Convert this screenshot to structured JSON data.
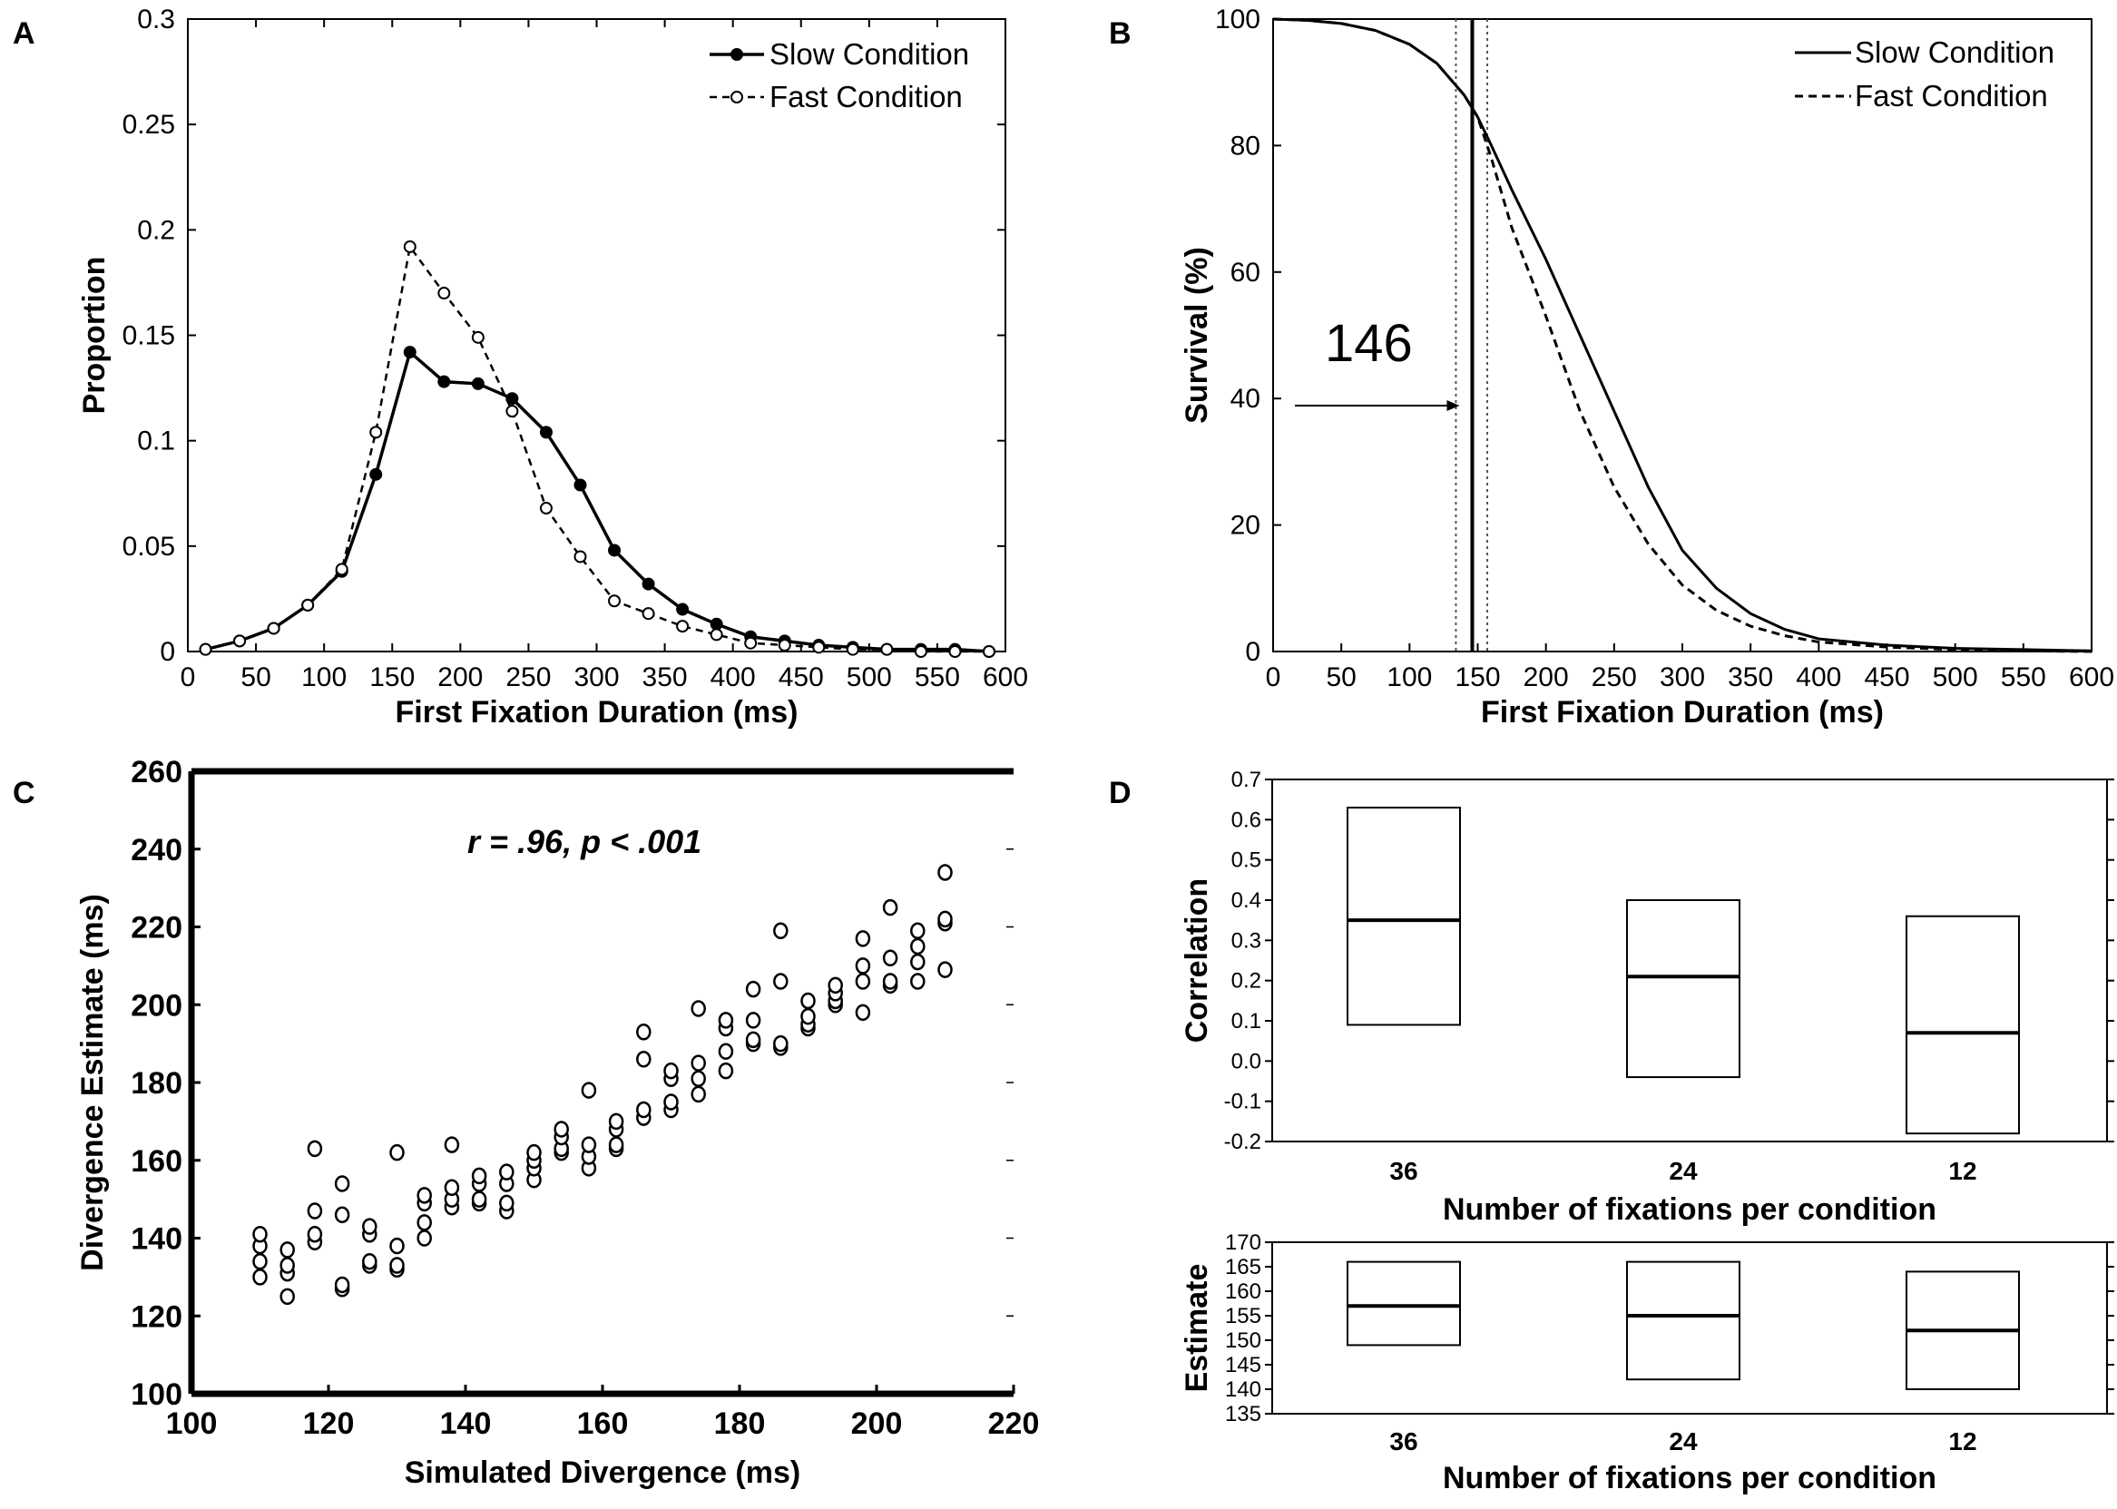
{
  "chart_data": [
    {
      "panel": "A",
      "type": "line",
      "xlabel": "First Fixation Duration (ms)",
      "ylabel": "Proportion",
      "xlim": [
        0,
        600
      ],
      "ylim": [
        0,
        0.3
      ],
      "xticks": [
        "0",
        "50",
        "100",
        "150",
        "200",
        "250",
        "300",
        "350",
        "400",
        "450",
        "500",
        "550",
        "600"
      ],
      "yticks": [
        "0",
        "0.05",
        "0.1",
        "0.15",
        "0.2",
        "0.25",
        "0.3"
      ],
      "legend_position": "top-right",
      "series": [
        {
          "name": "Slow Condition",
          "style": "solid-filled",
          "x": [
            13,
            38,
            63,
            88,
            113,
            138,
            163,
            188,
            213,
            238,
            263,
            288,
            313,
            338,
            363,
            388,
            413,
            438,
            463,
            488,
            513,
            538,
            563,
            588
          ],
          "y": [
            0.001,
            0.005,
            0.011,
            0.022,
            0.038,
            0.084,
            0.142,
            0.128,
            0.127,
            0.12,
            0.104,
            0.079,
            0.048,
            0.032,
            0.02,
            0.013,
            0.007,
            0.005,
            0.003,
            0.002,
            0.001,
            0.001,
            0.001,
            0.0
          ]
        },
        {
          "name": "Fast Condition",
          "style": "dashed-open",
          "x": [
            13,
            38,
            63,
            88,
            113,
            138,
            163,
            188,
            213,
            238,
            263,
            288,
            313,
            338,
            363,
            388,
            413,
            438,
            463,
            488,
            513,
            538,
            563,
            588
          ],
          "y": [
            0.001,
            0.005,
            0.011,
            0.022,
            0.039,
            0.104,
            0.192,
            0.17,
            0.149,
            0.114,
            0.068,
            0.045,
            0.024,
            0.018,
            0.012,
            0.008,
            0.004,
            0.003,
            0.002,
            0.001,
            0.001,
            0.0,
            0.0,
            0.0
          ]
        }
      ]
    },
    {
      "panel": "B",
      "type": "line",
      "xlabel": "First Fixation Duration (ms)",
      "ylabel": "Survival (%)",
      "xlim": [
        0,
        600
      ],
      "ylim": [
        0,
        100
      ],
      "xticks": [
        "0",
        "50",
        "100",
        "150",
        "200",
        "250",
        "300",
        "350",
        "400",
        "450",
        "500",
        "550",
        "600"
      ],
      "yticks": [
        "0",
        "20",
        "40",
        "60",
        "80",
        "100"
      ],
      "legend_position": "top-right",
      "annotation": "146",
      "divergence_point": 146,
      "ci_bounds": [
        134,
        157
      ],
      "series": [
        {
          "name": "Slow Condition",
          "style": "solid",
          "x": [
            0,
            25,
            50,
            75,
            100,
            120,
            140,
            150,
            160,
            175,
            200,
            225,
            250,
            275,
            300,
            325,
            350,
            375,
            400,
            450,
            500,
            550,
            600
          ],
          "y": [
            100,
            99.8,
            99.3,
            98.2,
            96,
            93,
            88,
            84.5,
            80,
            73,
            62,
            50,
            38,
            26,
            16,
            10,
            6,
            3.5,
            2,
            1,
            0.5,
            0.3,
            0.1
          ]
        },
        {
          "name": "Fast Condition",
          "style": "dashed",
          "x": [
            0,
            25,
            50,
            75,
            100,
            120,
            140,
            150,
            160,
            175,
            200,
            225,
            250,
            275,
            300,
            325,
            350,
            375,
            400,
            450,
            500,
            550,
            600
          ],
          "y": [
            100,
            99.8,
            99.3,
            98.2,
            96,
            93,
            88,
            84.5,
            78,
            67,
            53,
            38,
            26,
            17,
            10.5,
            6.5,
            4,
            2.5,
            1.5,
            0.7,
            0.3,
            0.1,
            0.0
          ]
        }
      ]
    },
    {
      "panel": "C",
      "type": "scatter",
      "xlabel": "Simulated Divergence (ms)",
      "ylabel": "Divergence Estimate (ms)",
      "xlim": [
        100,
        220
      ],
      "ylim": [
        100,
        260
      ],
      "xticks": [
        "100",
        "120",
        "140",
        "160",
        "180",
        "200",
        "220"
      ],
      "yticks": [
        "100",
        "120",
        "140",
        "160",
        "180",
        "200",
        "220",
        "240",
        "260"
      ],
      "annotation": "r = .96, p < .001",
      "points": [
        [
          110,
          130
        ],
        [
          110,
          134
        ],
        [
          110,
          138
        ],
        [
          110,
          141
        ],
        [
          114,
          125
        ],
        [
          114,
          131
        ],
        [
          114,
          133
        ],
        [
          114,
          137
        ],
        [
          118,
          139
        ],
        [
          118,
          141
        ],
        [
          118,
          147
        ],
        [
          118,
          163
        ],
        [
          122,
          127
        ],
        [
          122,
          128
        ],
        [
          122,
          146
        ],
        [
          122,
          154
        ],
        [
          126,
          133
        ],
        [
          126,
          134
        ],
        [
          126,
          141
        ],
        [
          126,
          143
        ],
        [
          130,
          132
        ],
        [
          130,
          133
        ],
        [
          130,
          138
        ],
        [
          130,
          162
        ],
        [
          134,
          140
        ],
        [
          134,
          144
        ],
        [
          134,
          149
        ],
        [
          134,
          151
        ],
        [
          138,
          148
        ],
        [
          138,
          150
        ],
        [
          138,
          153
        ],
        [
          138,
          164
        ],
        [
          142,
          149
        ],
        [
          142,
          150
        ],
        [
          142,
          154
        ],
        [
          142,
          156
        ],
        [
          146,
          147
        ],
        [
          146,
          149
        ],
        [
          146,
          154
        ],
        [
          146,
          157
        ],
        [
          150,
          155
        ],
        [
          150,
          158
        ],
        [
          150,
          160
        ],
        [
          150,
          162
        ],
        [
          154,
          162
        ],
        [
          154,
          163
        ],
        [
          154,
          166
        ],
        [
          154,
          168
        ],
        [
          158,
          158
        ],
        [
          158,
          161
        ],
        [
          158,
          164
        ],
        [
          158,
          178
        ],
        [
          162,
          163
        ],
        [
          162,
          164
        ],
        [
          162,
          168
        ],
        [
          162,
          170
        ],
        [
          166,
          171
        ],
        [
          166,
          173
        ],
        [
          166,
          186
        ],
        [
          166,
          193
        ],
        [
          170,
          173
        ],
        [
          170,
          175
        ],
        [
          170,
          181
        ],
        [
          170,
          183
        ],
        [
          174,
          177
        ],
        [
          174,
          181
        ],
        [
          174,
          185
        ],
        [
          174,
          199
        ],
        [
          178,
          183
        ],
        [
          178,
          188
        ],
        [
          178,
          194
        ],
        [
          178,
          196
        ],
        [
          182,
          190
        ],
        [
          182,
          191
        ],
        [
          182,
          196
        ],
        [
          182,
          204
        ],
        [
          186,
          189
        ],
        [
          186,
          190
        ],
        [
          186,
          206
        ],
        [
          186,
          219
        ],
        [
          190,
          194
        ],
        [
          190,
          195
        ],
        [
          190,
          197
        ],
        [
          190,
          201
        ],
        [
          194,
          200
        ],
        [
          194,
          201
        ],
        [
          194,
          203
        ],
        [
          194,
          205
        ],
        [
          198,
          198
        ],
        [
          198,
          206
        ],
        [
          198,
          210
        ],
        [
          198,
          217
        ],
        [
          202,
          205
        ],
        [
          202,
          206
        ],
        [
          202,
          212
        ],
        [
          202,
          225
        ],
        [
          206,
          206
        ],
        [
          206,
          211
        ],
        [
          206,
          215
        ],
        [
          206,
          219
        ],
        [
          210,
          209
        ],
        [
          210,
          221
        ],
        [
          210,
          222
        ],
        [
          210,
          234
        ]
      ]
    },
    {
      "panel": "D",
      "type": "box",
      "subplots": [
        {
          "ylabel": "Correlation",
          "xlabel": "Number of fixations per condition",
          "ylim": [
            -0.2,
            0.7
          ],
          "yticks": [
            "0.7",
            "0.6",
            "0.5",
            "0.4",
            "0.3",
            "0.2",
            "0.1",
            "0.0",
            "-0.1",
            "-0.2"
          ],
          "categories": [
            "36",
            "24",
            "12"
          ],
          "boxes": [
            {
              "low": 0.09,
              "mid": 0.35,
              "high": 0.63
            },
            {
              "low": -0.04,
              "mid": 0.21,
              "high": 0.4
            },
            {
              "low": -0.18,
              "mid": 0.07,
              "high": 0.36
            }
          ]
        },
        {
          "ylabel": "Estimate",
          "xlabel": "Number of fixations per condition",
          "ylim": [
            135,
            170
          ],
          "yticks": [
            "170",
            "165",
            "160",
            "155",
            "150",
            "145",
            "140",
            "135"
          ],
          "categories": [
            "36",
            "24",
            "12"
          ],
          "boxes": [
            {
              "low": 149,
              "mid": 157,
              "high": 166
            },
            {
              "low": 142,
              "mid": 155,
              "high": 166
            },
            {
              "low": 140,
              "mid": 152,
              "high": 164
            }
          ]
        }
      ]
    }
  ],
  "labels": {
    "panel_a": "A",
    "panel_b": "B",
    "panel_c": "C",
    "panel_d": "D"
  }
}
